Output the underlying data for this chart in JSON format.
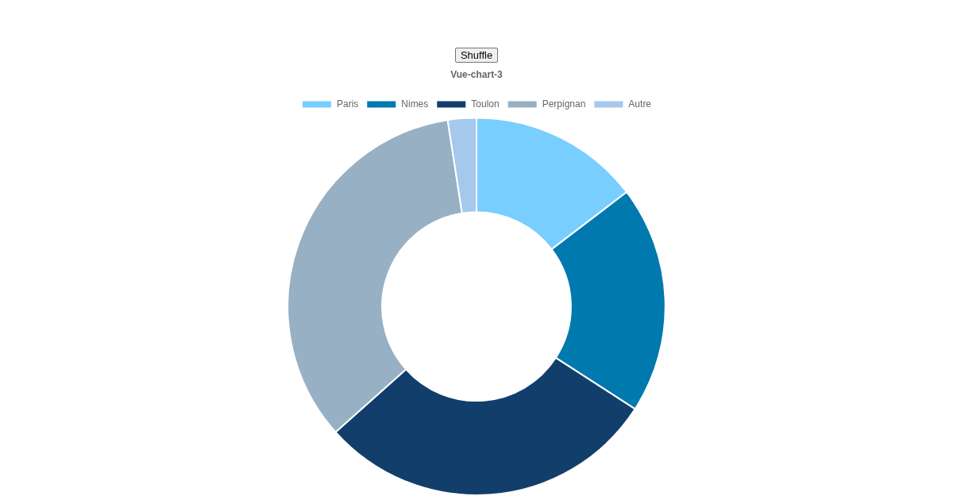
{
  "chart_data": {
    "type": "donut",
    "title": "Vue-chart-3",
    "categories": [
      "Paris",
      "Nimes",
      "Toulon",
      "Perpignan",
      "Autre"
    ],
    "values": [
      14.63,
      19.51,
      29.27,
      34.15,
      2.44
    ],
    "colors": [
      "#77ceff",
      "#0079af",
      "#123e6b",
      "#97b0c4",
      "#a5c8ed"
    ],
    "legend": "top",
    "annotations": [
      "Shuffle"
    ]
  }
}
